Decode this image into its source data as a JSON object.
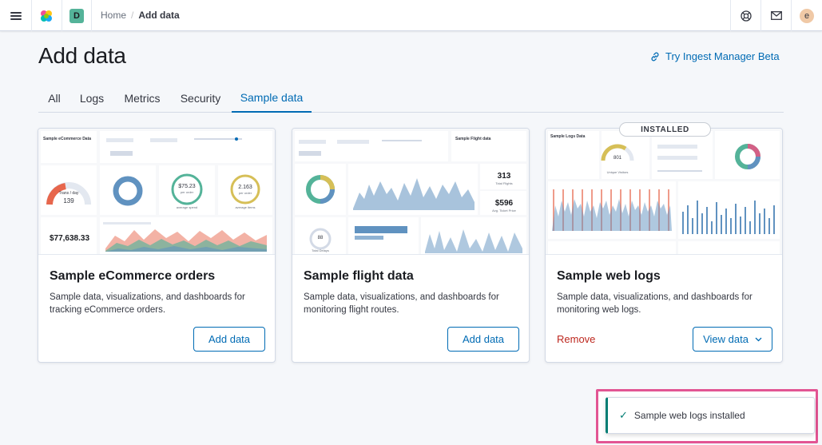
{
  "header": {
    "menu_icon": "hamburger-menu-icon",
    "logo_icon": "kibana-logo-icon",
    "space_initial": "D",
    "breadcrumbs": [
      "Home",
      "Add data"
    ],
    "help_icon": "help-lifebuoy-icon",
    "mail_icon": "mail-icon",
    "avatar_initial": "e"
  },
  "page": {
    "title": "Add data",
    "ingest_link": "Try Ingest Manager Beta",
    "ingest_icon": "link-icon"
  },
  "tabs": [
    {
      "label": "All",
      "active": false
    },
    {
      "label": "Logs",
      "active": false
    },
    {
      "label": "Metrics",
      "active": false
    },
    {
      "label": "Security",
      "active": false
    },
    {
      "label": "Sample data",
      "active": true
    }
  ],
  "cards": [
    {
      "title": "Sample eCommerce orders",
      "description": "Sample data, visualizations, and dashboards for tracking eCommerce orders.",
      "button": "Add data",
      "preview": {
        "heading": "Sample eCommerce Data",
        "gauge_label": "Trans / day",
        "gauge_value": "139",
        "donut_value": "$75.23",
        "donut_sub": "per order",
        "donut_caption": "average spend",
        "ring_value": "2.163",
        "ring_sub": "per order",
        "ring_caption": "average items",
        "big_metric": "$77,638.33"
      }
    },
    {
      "title": "Sample flight data",
      "description": "Sample data, visualizations, and dashboards for monitoring flight routes.",
      "button": "Add data",
      "preview": {
        "heading": "Sample Flight data",
        "metric_1": "313",
        "metric_1_label": "Total Flights",
        "metric_2": "$596",
        "metric_2_label": "Avg. Ticket Price",
        "ring_value": "88",
        "ring_label": "Total Delays"
      }
    },
    {
      "title": "Sample web logs",
      "description": "Sample data, visualizations, and dashboards for monitoring web logs.",
      "remove": "Remove",
      "button": "View data",
      "badge": "INSTALLED",
      "preview": {
        "heading": "Sample Logs Data",
        "gauge_value": "801",
        "gauge_label": "Unique Visitors"
      }
    }
  ],
  "toast": {
    "icon": "check-icon",
    "message": "Sample web logs installed"
  },
  "colors": {
    "accent": "#006bb4",
    "danger": "#bd271e",
    "success": "#017d73",
    "highlight": "#e25593"
  }
}
